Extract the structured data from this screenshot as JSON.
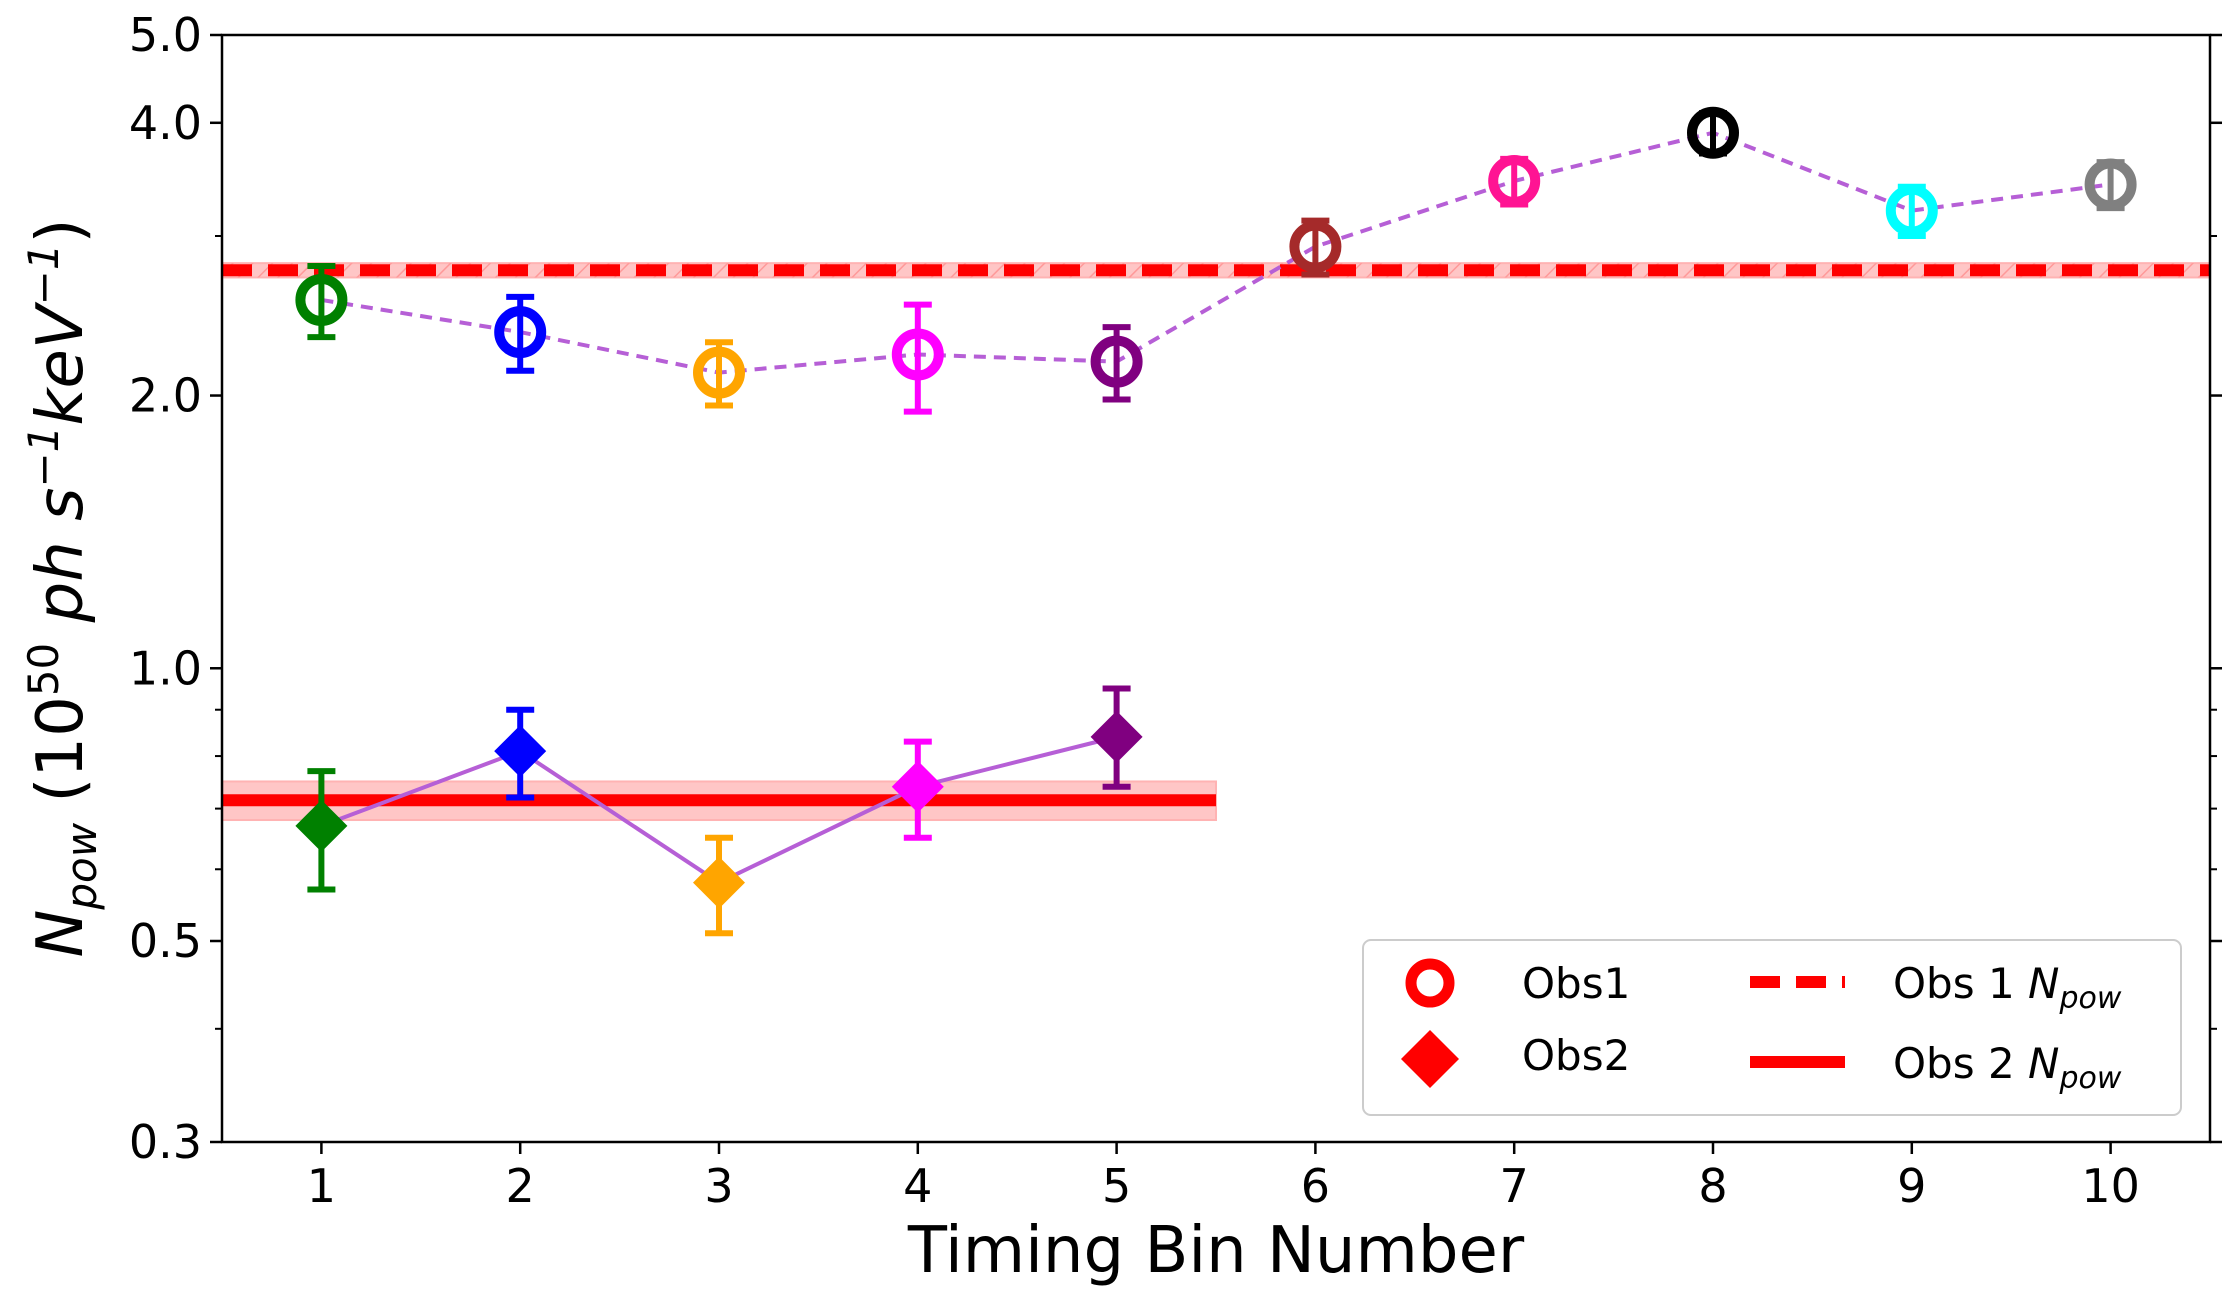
{
  "chart_data": {
    "type": "scatter",
    "title": "",
    "xlabel": "Timing Bin Number",
    "ylabel": {
      "symbol": "N",
      "symbol_sub": "pow",
      "unit_prefix": " (10",
      "unit_exp": "50",
      "unit_ph": " ph s",
      "unit_s_exp": "−1",
      "unit_kev": "keV",
      "unit_kev_exp": "−1",
      "unit_close": ")"
    },
    "yscale": "log",
    "xlim": [
      0.5,
      10.5
    ],
    "ylim": [
      0.3,
      5.0
    ],
    "xticks": [
      1,
      2,
      3,
      4,
      5,
      6,
      7,
      8,
      9,
      10
    ],
    "xtick_labels": [
      "1",
      "2",
      "3",
      "4",
      "5",
      "6",
      "7",
      "8",
      "9",
      "10"
    ],
    "yticks": [
      0.3,
      0.5,
      1.0,
      2.0,
      4.0,
      5.0
    ],
    "ytick_labels": [
      "0.3",
      "0.5",
      "1.0",
      "2.0",
      "4.0",
      "5.0"
    ],
    "yminor_ticks": [
      0.4,
      0.6,
      0.7,
      0.8,
      0.9,
      3.0
    ],
    "series": [
      {
        "name": "Obs1",
        "marker": "open-circle",
        "connector": "dashed",
        "connector_color": "#b65fd6",
        "x": [
          1,
          2,
          3,
          4,
          5,
          6,
          7,
          8,
          9,
          10
        ],
        "y": [
          2.55,
          2.35,
          2.12,
          2.22,
          2.18,
          2.92,
          3.45,
          3.9,
          3.2,
          3.42
        ],
        "yerr_low": [
          0.23,
          0.22,
          0.17,
          0.3,
          0.2,
          0.2,
          0.2,
          0.2,
          0.2,
          0.2
        ],
        "yerr_high": [
          0.23,
          0.22,
          0.17,
          0.3,
          0.2,
          0.2,
          0.2,
          0.2,
          0.2,
          0.2
        ],
        "colors": [
          "#008000",
          "#0000ff",
          "#ffa500",
          "#ff00ff",
          "#800080",
          "#a52a2a",
          "#ff1493",
          "#000000",
          "#00ffff",
          "#808080"
        ]
      },
      {
        "name": "Obs2",
        "marker": "diamond",
        "connector": "solid",
        "connector_color": "#b65fd6",
        "x": [
          1,
          2,
          3,
          4,
          5
        ],
        "y": [
          0.67,
          0.81,
          0.58,
          0.74,
          0.84
        ],
        "yerr_low": [
          0.1,
          0.09,
          0.07,
          0.09,
          0.1
        ],
        "yerr_high": [
          0.1,
          0.09,
          0.07,
          0.09,
          0.11
        ],
        "colors": [
          "#008000",
          "#0000ff",
          "#ffa500",
          "#ff00ff",
          "#800080"
        ]
      }
    ],
    "reference_lines": [
      {
        "name": "Obs 1 N_pow",
        "label_prefix": "Obs 1 ",
        "label_symbol": "N",
        "label_sub": "pow",
        "y": 2.75,
        "band": [
          2.7,
          2.8
        ],
        "x_range": [
          0.5,
          10.5
        ],
        "style": "dashed",
        "color": "#ff0000",
        "band_color": "#ffb3b3"
      },
      {
        "name": "Obs 2 N_pow",
        "label_prefix": "Obs 2 ",
        "label_symbol": "N",
        "label_sub": "pow",
        "y": 0.715,
        "band": [
          0.68,
          0.75
        ],
        "x_range": [
          0.5,
          5.5
        ],
        "style": "solid",
        "color": "#ff0000",
        "band_color": "#ffb3b3"
      }
    ],
    "legend": {
      "placement": "lower-right",
      "entries": [
        {
          "label": "Obs1",
          "marker": "open-circle",
          "color": "#ff0000"
        },
        {
          "label": "Obs2",
          "marker": "diamond",
          "color": "#ff0000"
        }
      ]
    }
  }
}
